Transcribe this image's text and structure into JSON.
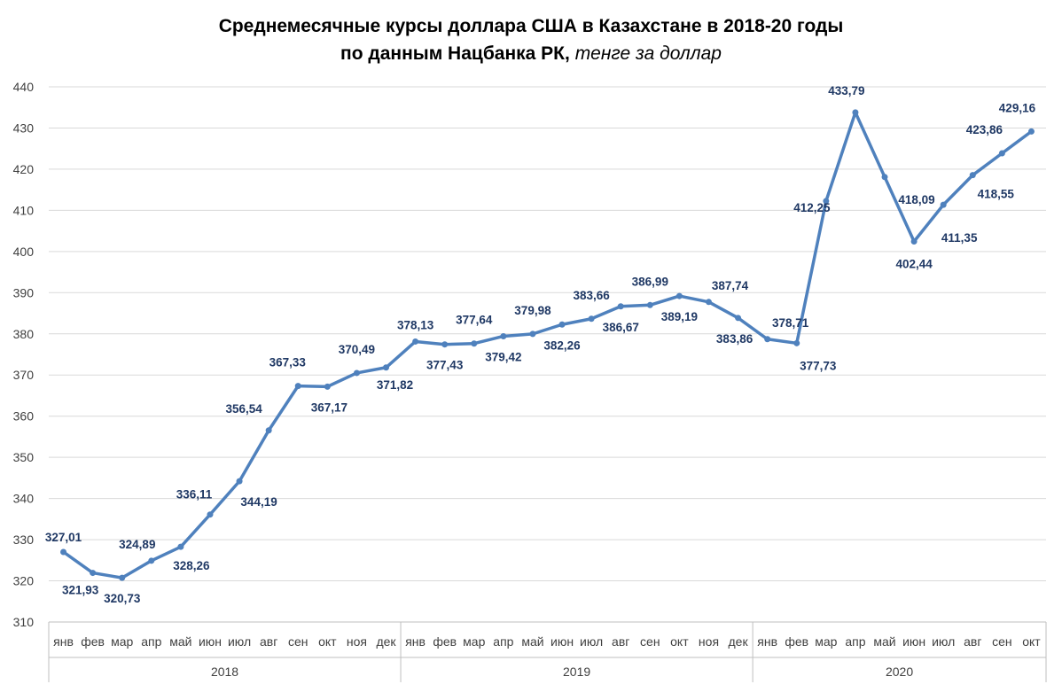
{
  "chart_data": {
    "type": "line",
    "title_line1": "Среднемесячные курсы доллара США в Казахстане в 2018-20 годы",
    "title_line2_bold": "по данным Нацбанка РК,",
    "title_line2_italic": "тенге за доллар",
    "ylim": [
      310,
      440
    ],
    "yticks": [
      310,
      320,
      330,
      340,
      350,
      360,
      370,
      380,
      390,
      400,
      410,
      420,
      430,
      440
    ],
    "grid": true,
    "years": [
      {
        "label": "2018",
        "months": [
          "янв",
          "фев",
          "мар",
          "апр",
          "май",
          "июн",
          "июл",
          "авг",
          "сен",
          "окт",
          "ноя",
          "дек"
        ]
      },
      {
        "label": "2019",
        "months": [
          "янв",
          "фев",
          "мар",
          "апр",
          "май",
          "июн",
          "июл",
          "авг",
          "сен",
          "окт",
          "ноя",
          "дек"
        ]
      },
      {
        "label": "2020",
        "months": [
          "янв",
          "фев",
          "мар",
          "апр",
          "май",
          "июн",
          "июл",
          "авг",
          "сен",
          "окт"
        ]
      }
    ],
    "values": [
      327.01,
      321.93,
      320.73,
      324.89,
      328.26,
      336.11,
      344.19,
      356.54,
      367.33,
      367.17,
      370.49,
      371.82,
      378.13,
      377.43,
      377.64,
      379.42,
      379.98,
      382.26,
      383.66,
      386.67,
      386.99,
      389.19,
      387.74,
      383.86,
      378.71,
      377.73,
      412.25,
      433.79,
      418.09,
      402.44,
      411.35,
      418.55,
      423.86,
      429.16
    ],
    "labels": [
      "327,01",
      "321,93",
      "320,73",
      "324,89",
      "328,26",
      "336,11",
      "344,19",
      "356,54",
      "367,33",
      "367,17",
      "370,49",
      "371,82",
      "378,13",
      "377,43",
      "377,64",
      "379,42",
      "379,98",
      "382,26",
      "383,66",
      "386,67",
      "386,99",
      "389,19",
      "387,74",
      "383,86",
      "378,71",
      "377,73",
      "412,25",
      "433,79",
      "418,09",
      "402,44",
      "411,35",
      "418,55",
      "423,86",
      "429,16"
    ],
    "line_color": "#4f81bd",
    "label_color": "#1f3864"
  }
}
